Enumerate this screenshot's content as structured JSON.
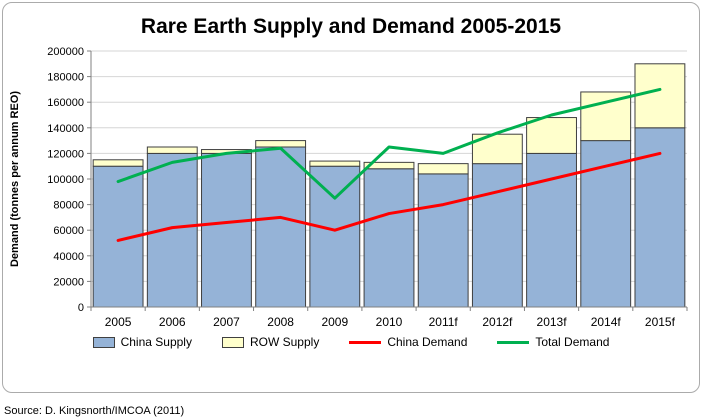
{
  "source": "Source: D. Kingsnorth/IMCOA (2011)",
  "chart_data": {
    "type": "bar",
    "subtype": "stacked-bar-with-lines",
    "title": "Rare Earth Supply and Demand 2005-2015",
    "categories": [
      "2005",
      "2006",
      "2007",
      "2008",
      "2009",
      "2010",
      "2011f",
      "2012f",
      "2013f",
      "2014f",
      "2015f"
    ],
    "xlabel": "",
    "ylabel": "Demand (tonnes per annum REO)",
    "ylim": [
      0,
      200000
    ],
    "ytick_step": 20000,
    "grid": true,
    "legend_position": "bottom",
    "colors": {
      "china_supply": "#95B3D7",
      "row_supply": "#FFFFCC",
      "china_demand": "#FF0000",
      "total_demand": "#00B050"
    },
    "bar_series": [
      {
        "name": "China Supply",
        "color": "#95B3D7",
        "values": [
          110000,
          120000,
          120000,
          125000,
          110000,
          108000,
          104000,
          112000,
          120000,
          130000,
          140000
        ]
      },
      {
        "name": "ROW Supply",
        "color": "#FFFFCC",
        "values": [
          5000,
          5000,
          3000,
          5000,
          4000,
          5000,
          8000,
          23000,
          28000,
          38000,
          50000
        ]
      }
    ],
    "line_series": [
      {
        "name": "China Demand",
        "color": "#FF0000",
        "values": [
          52000,
          62000,
          66000,
          70000,
          60000,
          73000,
          80000,
          90000,
          100000,
          110000,
          120000
        ]
      },
      {
        "name": "Total Demand",
        "color": "#00B050",
        "values": [
          98000,
          113000,
          120000,
          124000,
          85000,
          125000,
          120000,
          136000,
          150000,
          160000,
          170000
        ]
      }
    ]
  }
}
